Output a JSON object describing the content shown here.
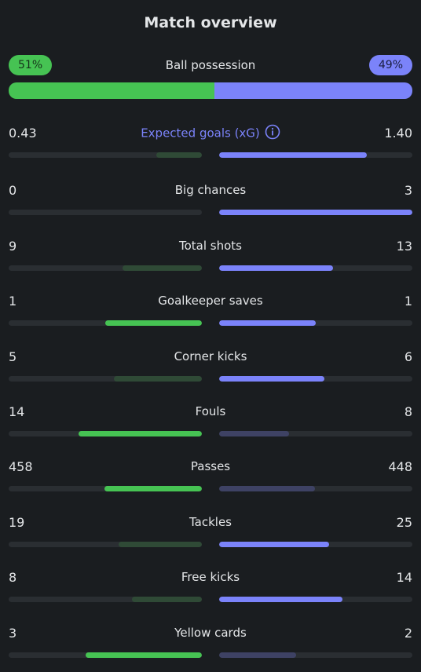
{
  "header": {
    "title": "Match overview"
  },
  "possession": {
    "label": "Ball possession",
    "home": "51%",
    "away": "49%",
    "home_value": 51,
    "away_value": 49
  },
  "colors": {
    "home": "#46c353",
    "away": "#7b83fa",
    "home_dim": "#2f4a36",
    "away_dim": "#3e4264",
    "accent": "#7b83fa"
  },
  "stats": [
    {
      "label": "Expected goals (xG)",
      "home": "0.43",
      "away": "1.40",
      "home_num": 0.43,
      "away_num": 1.4,
      "info_icon": "info-circle-icon"
    },
    {
      "label": "Big chances",
      "home": "0",
      "away": "3",
      "home_num": 0,
      "away_num": 3
    },
    {
      "label": "Total shots",
      "home": "9",
      "away": "13",
      "home_num": 9,
      "away_num": 13
    },
    {
      "label": "Goalkeeper saves",
      "home": "1",
      "away": "1",
      "home_num": 1,
      "away_num": 1
    },
    {
      "label": "Corner kicks",
      "home": "5",
      "away": "6",
      "home_num": 5,
      "away_num": 6
    },
    {
      "label": "Fouls",
      "home": "14",
      "away": "8",
      "home_num": 14,
      "away_num": 8
    },
    {
      "label": "Passes",
      "home": "458",
      "away": "448",
      "home_num": 458,
      "away_num": 448
    },
    {
      "label": "Tackles",
      "home": "19",
      "away": "25",
      "home_num": 19,
      "away_num": 25
    },
    {
      "label": "Free kicks",
      "home": "8",
      "away": "14",
      "home_num": 8,
      "away_num": 14
    },
    {
      "label": "Yellow cards",
      "home": "3",
      "away": "2",
      "home_num": 3,
      "away_num": 2
    }
  ]
}
